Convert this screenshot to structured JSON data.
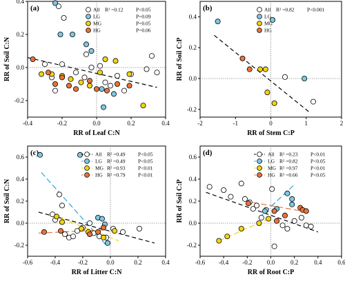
{
  "chart_data": [
    {
      "panel_label": "(a)",
      "type": "scatter",
      "xlabel": "RR of Leaf C:N",
      "ylabel": "RR of Soil C:N",
      "xlim": [
        -0.4,
        0.4
      ],
      "ylim": [
        -0.3,
        0.4
      ],
      "xticks": [
        -0.4,
        -0.2,
        0.0,
        0.2,
        0.4
      ],
      "yticks": [
        -0.2,
        0.0,
        0.2,
        0.4
      ],
      "xtick_labels": [
        "-0.4",
        "-0.2",
        "0.0",
        "0.2",
        "0.4"
      ],
      "ytick_labels": [
        "-0.2",
        "0.0",
        "0.2",
        "0.4"
      ],
      "ref_x": 0,
      "ref_y": 0,
      "series": [
        {
          "name": "All",
          "stat": "R² =0.12",
          "p": "P<0.05",
          "color": "#ffffff",
          "points": [
            [
              -0.22,
              0.37
            ],
            [
              -0.19,
              0.3
            ],
            [
              -0.3,
              0.02
            ],
            [
              -0.26,
              -0.06
            ],
            [
              -0.24,
              -0.14
            ],
            [
              -0.2,
              0.02
            ],
            [
              -0.12,
              -0.03
            ],
            [
              -0.07,
              -0.06
            ],
            [
              -0.03,
              0.0
            ],
            [
              0.02,
              0.01
            ],
            [
              0.05,
              -0.09
            ],
            [
              0.08,
              -0.11
            ],
            [
              0.12,
              -0.05
            ],
            [
              0.16,
              -0.14
            ],
            [
              0.2,
              -0.04
            ],
            [
              0.29,
              -0.01
            ],
            [
              0.35,
              -0.03
            ],
            [
              0.32,
              0.07
            ],
            [
              -0.06,
              0.08
            ]
          ]
        },
        {
          "name": "LG",
          "stat": "",
          "p": "P=0.09",
          "color": "#7ec8e3",
          "points": [
            [
              -0.24,
              0.39
            ],
            [
              -0.21,
              0.2
            ],
            [
              -0.14,
              0.2
            ],
            [
              -0.06,
              0.14
            ],
            [
              -0.03,
              0.1
            ],
            [
              0.03,
              -0.13
            ],
            [
              0.04,
              -0.24
            ],
            [
              0.1,
              -0.16
            ]
          ]
        },
        {
          "name": "MG",
          "stat": "",
          "p": "P=0.05",
          "color": "#f4d312",
          "points": [
            [
              -0.32,
              -0.04
            ],
            [
              -0.26,
              -0.04
            ],
            [
              -0.2,
              -0.05
            ],
            [
              -0.15,
              -0.07
            ],
            [
              -0.09,
              -0.09
            ],
            [
              -0.04,
              -0.11
            ],
            [
              0.02,
              -0.03
            ],
            [
              0.05,
              0.05
            ],
            [
              0.11,
              0.04
            ],
            [
              0.19,
              -0.04
            ],
            [
              0.27,
              -0.23
            ]
          ]
        },
        {
          "name": "HG",
          "stat": "",
          "p": "P=0.06",
          "color": "#e8733a",
          "points": [
            [
              -0.37,
              0.05
            ],
            [
              -0.28,
              -0.03
            ],
            [
              -0.24,
              -0.1
            ],
            [
              -0.2,
              -0.06
            ],
            [
              -0.16,
              -0.11
            ],
            [
              -0.12,
              -0.13
            ],
            [
              -0.04,
              -0.08
            ],
            [
              0.0,
              -0.13
            ],
            [
              0.06,
              -0.14
            ],
            [
              0.12,
              -0.1
            ],
            [
              0.19,
              -0.11
            ]
          ]
        }
      ],
      "trend": {
        "color": "#000000",
        "dash": "6 4",
        "from": [
          -0.4,
          0.06
        ],
        "to": [
          0.35,
          -0.12
        ]
      }
    },
    {
      "panel_label": "(b)",
      "type": "scatter",
      "xlabel": "RR of Stem C:P",
      "ylabel": "RR of Soil C:P",
      "xlim": [
        -2,
        2
      ],
      "ylim": [
        -0.25,
        0.5
      ],
      "xticks": [
        -2,
        -1,
        0,
        1,
        2
      ],
      "yticks": [
        -0.2,
        0.0,
        0.2,
        0.4
      ],
      "xtick_labels": [
        "-2",
        "-1",
        "0",
        "1",
        "2"
      ],
      "ytick_labels": [
        "-0.2",
        "0.0",
        "0.2",
        "0.4"
      ],
      "ref_x": 0,
      "ref_y": 0,
      "series": [
        {
          "name": "All",
          "stat": "R² =0.82",
          "p": "P<0.001",
          "color": "#ffffff",
          "points": [
            [
              0.4,
              0.01
            ],
            [
              1.2,
              -0.15
            ]
          ]
        },
        {
          "name": "LG",
          "stat": "",
          "p": "",
          "color": "#7ec8e3",
          "points": [
            [
              -1.5,
              0.37
            ],
            [
              0.05,
              0.38
            ],
            [
              0.95,
              0.0
            ]
          ]
        },
        {
          "name": "MG",
          "stat": "",
          "p": "",
          "color": "#f4d312",
          "points": [
            [
              -0.3,
              0.06
            ],
            [
              -0.15,
              0.06
            ],
            [
              -0.1,
              -0.09
            ],
            [
              0.1,
              -0.16
            ]
          ]
        },
        {
          "name": "HG",
          "stat": "",
          "p": "",
          "color": "#e8733a",
          "points": [
            [
              -0.8,
              0.13
            ],
            [
              -0.6,
              0.06
            ]
          ]
        }
      ],
      "trend": {
        "color": "#000000",
        "dash": "6 4",
        "from": [
          -1.6,
          0.28
        ],
        "to": [
          1.1,
          -0.22
        ]
      }
    },
    {
      "panel_label": "(c)",
      "type": "scatter",
      "xlabel": "RR of Litter C:N",
      "ylabel": "RR of Soil C:N",
      "xlim": [
        -0.6,
        0.4
      ],
      "ylim": [
        -0.3,
        0.7
      ],
      "xticks": [
        -0.6,
        -0.4,
        -0.2,
        0.0,
        0.2,
        0.4
      ],
      "yticks": [
        -0.2,
        0.0,
        0.2,
        0.4,
        0.6
      ],
      "xtick_labels": [
        "-0.6",
        "-0.4",
        "-0.2",
        "0.0",
        "0.2",
        "0.4"
      ],
      "ytick_labels": [
        "-0.2",
        "0.0",
        "0.2",
        "0.4",
        "0.6"
      ],
      "ref_x": 0,
      "ref_y": 0,
      "series": [
        {
          "name": "All",
          "stat": "R² =0.49",
          "p": "P<0.05",
          "color": "#ffffff",
          "points": [
            [
              -0.42,
              0.08
            ],
            [
              -0.4,
              0.03
            ],
            [
              -0.37,
              0.26
            ],
            [
              -0.35,
              0.16
            ],
            [
              -0.33,
              -0.1
            ],
            [
              -0.3,
              -0.13
            ],
            [
              -0.27,
              -0.12
            ],
            [
              -0.24,
              -0.07
            ],
            [
              -0.2,
              -0.04
            ],
            [
              -0.15,
              0.0
            ],
            [
              -0.12,
              -0.09
            ],
            [
              -0.08,
              -0.12
            ],
            [
              -0.03,
              -0.13
            ],
            [
              0.02,
              -0.05
            ],
            [
              0.09,
              -0.08
            ],
            [
              0.21,
              -0.05
            ]
          ]
        },
        {
          "name": "LG",
          "stat": "R² =0.49",
          "p": "P<0.05",
          "color": "#7ec8e3",
          "points": [
            [
              -0.51,
              0.62
            ],
            [
              -0.22,
              0.62
            ],
            [
              -0.09,
              0.05
            ],
            [
              -0.06,
              0.04
            ],
            [
              -0.04,
              -0.01
            ],
            [
              -0.02,
              -0.18
            ]
          ]
        },
        {
          "name": "MG",
          "stat": "R² =0.93",
          "p": "P<0.01",
          "color": "#f4d312",
          "points": [
            [
              -0.39,
              0.06
            ],
            [
              -0.35,
              0.01
            ],
            [
              -0.21,
              -0.05
            ],
            [
              -0.16,
              -0.08
            ],
            [
              -0.05,
              -0.13
            ],
            [
              0.03,
              -0.07
            ]
          ]
        },
        {
          "name": "HG",
          "stat": "R² =0.79",
          "p": "P<0.01",
          "color": "#e8733a",
          "points": [
            [
              -0.48,
              -0.08
            ],
            [
              -0.36,
              -0.07
            ],
            [
              -0.15,
              -0.1
            ],
            [
              -0.09,
              -0.08
            ],
            [
              -0.05,
              -0.04
            ]
          ]
        }
      ],
      "trends": [
        {
          "series": "All",
          "color": "#000000",
          "dash": "6 4",
          "from": [
            -0.52,
            0.1
          ],
          "to": [
            0.32,
            -0.18
          ]
        },
        {
          "series": "LG",
          "color": "#29a6d6",
          "dash": "8 4",
          "from": [
            -0.5,
            0.46
          ],
          "to": [
            -0.03,
            -0.2
          ]
        },
        {
          "series": "MG",
          "color": "#f4d312",
          "dash": "8 4",
          "from": [
            -0.41,
            0.07
          ],
          "to": [
            0.06,
            -0.16
          ]
        },
        {
          "series": "HG",
          "color": "#e8733a",
          "dash": "8 4",
          "from": [
            -0.52,
            -0.09
          ],
          "to": [
            -0.03,
            -0.06
          ]
        }
      ]
    },
    {
      "panel_label": "(d)",
      "type": "scatter",
      "xlabel": "RR of Root C:P",
      "ylabel": "RR of Soil C:P",
      "xlim": [
        -0.6,
        0.6
      ],
      "ylim": [
        -0.3,
        0.7
      ],
      "xticks": [
        -0.6,
        -0.4,
        -0.2,
        0.0,
        0.2,
        0.4,
        0.6
      ],
      "yticks": [
        -0.2,
        0.0,
        0.2,
        0.4,
        0.6
      ],
      "xtick_labels": [
        "-0.6",
        "-0.4",
        "-0.2",
        "0.0",
        "0.2",
        "0.4",
        "0.6"
      ],
      "ytick_labels": [
        "-0.2",
        "0.0",
        "0.2",
        "0.4",
        "0.6"
      ],
      "ref_x": 0,
      "ref_y": 0,
      "series": [
        {
          "name": "All",
          "stat": "R² =0.23",
          "p": "P<0.01",
          "color": "#ffffff",
          "points": [
            [
              -0.52,
              0.33
            ],
            [
              -0.4,
              0.3
            ],
            [
              -0.34,
              0.24
            ],
            [
              -0.25,
              0.36
            ],
            [
              -0.22,
              0.22
            ],
            [
              -0.18,
              0.19
            ],
            [
              -0.15,
              0.13
            ],
            [
              -0.12,
              0.16
            ],
            [
              -0.08,
              0.05
            ],
            [
              -0.04,
              0.12
            ],
            [
              0.01,
              0.31
            ],
            [
              0.03,
              -0.21
            ],
            [
              0.1,
              -0.02
            ],
            [
              0.14,
              -0.05
            ],
            [
              0.2,
              0.02
            ],
            [
              0.26,
              0.05
            ],
            [
              0.3,
              -0.02
            ],
            [
              0.34,
              -0.03
            ]
          ]
        },
        {
          "name": "LG",
          "stat": "R² =0.82",
          "p": "P<0.05",
          "color": "#7ec8e3",
          "points": [
            [
              -0.05,
              0.11
            ],
            [
              0.05,
              0.13
            ],
            [
              0.14,
              0.27
            ],
            [
              0.18,
              0.22
            ],
            [
              0.18,
              0.17
            ]
          ]
        },
        {
          "name": "MG",
          "stat": "R² =0.97",
          "p": "P<0.01",
          "color": "#f4d312",
          "points": [
            [
              -0.44,
              -0.16
            ],
            [
              -0.37,
              -0.12
            ],
            [
              -0.25,
              -0.05
            ],
            [
              -0.1,
              0.0
            ],
            [
              -0.02,
              0.04
            ]
          ]
        },
        {
          "name": "HG",
          "stat": "R² =0.66",
          "p": "P<0.05",
          "color": "#e8733a",
          "points": [
            [
              -0.19,
              0.18
            ],
            [
              0.03,
              0.11
            ],
            [
              0.05,
              0.02
            ],
            [
              0.12,
              0.07
            ],
            [
              0.25,
              0.14
            ],
            [
              0.27,
              0.12
            ],
            [
              0.3,
              0.11
            ]
          ]
        }
      ],
      "trends": [
        {
          "series": "All",
          "color": "#000000",
          "dash": "6 4",
          "from": [
            -0.55,
            0.28
          ],
          "to": [
            0.4,
            -0.08
          ]
        },
        {
          "series": "LG",
          "color": "#29a6d6",
          "dash": "8 4",
          "from": [
            -0.1,
            0.05
          ],
          "to": [
            0.19,
            0.34
          ]
        },
        {
          "series": "MG",
          "color": "#f4d312",
          "dash": "8 4",
          "from": [
            -0.44,
            -0.16
          ],
          "to": [
            -0.02,
            0.04
          ]
        },
        {
          "series": "HG",
          "color": "#e8733a",
          "dash": "8 4",
          "from": [
            -0.22,
            0.2
          ],
          "to": [
            0.32,
            0.1
          ]
        }
      ]
    }
  ]
}
